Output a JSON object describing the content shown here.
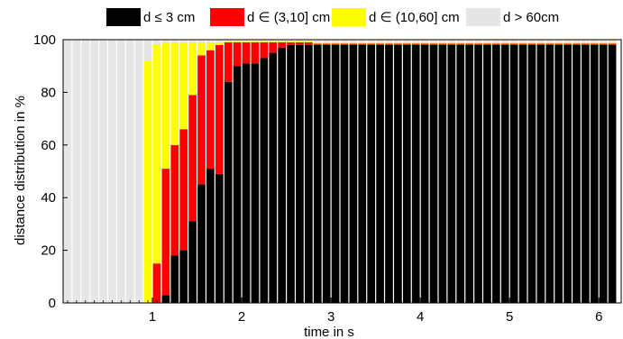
{
  "chart_data": {
    "type": "bar",
    "stacked": true,
    "xlabel": "time in s",
    "ylabel": "distance distribution in %",
    "xlim": [
      0.0,
      6.25
    ],
    "ylim": [
      0,
      100
    ],
    "xticks": [
      1,
      2,
      3,
      4,
      5,
      6
    ],
    "yticks": [
      0,
      20,
      40,
      60,
      80,
      100
    ],
    "bar_width": 0.1,
    "grid": false,
    "legend_position": "top",
    "colors": {
      "le3": "#000000",
      "b3_10": "#ff0000",
      "b10_60": "#ffff00",
      "gt60": "#e6e6e6"
    },
    "series": [
      {
        "name": "d ≤ 3 cm",
        "key": "le3"
      },
      {
        "name": "d ∈  (3,10] cm",
        "key": "b3_10"
      },
      {
        "name": "d ∈  (10,60] cm",
        "key": "b10_60"
      },
      {
        "name": "d > 60cm",
        "key": "gt60"
      }
    ],
    "x": [
      0.05,
      0.15,
      0.25,
      0.35,
      0.45,
      0.55,
      0.65,
      0.75,
      0.85,
      0.95,
      1.05,
      1.15,
      1.25,
      1.35,
      1.45,
      1.55,
      1.65,
      1.75,
      1.85,
      1.95,
      2.05,
      2.15,
      2.25,
      2.35,
      2.45,
      2.55,
      2.65,
      2.75,
      2.85,
      2.95,
      3.05,
      3.15,
      3.25,
      3.35,
      3.45,
      3.55,
      3.65,
      3.75,
      3.85,
      3.95,
      4.05,
      4.15,
      4.25,
      4.35,
      4.45,
      4.55,
      4.65,
      4.75,
      4.85,
      4.95,
      5.05,
      5.15,
      5.25,
      5.35,
      5.45,
      5.55,
      5.65,
      5.75,
      5.85,
      5.95,
      6.05,
      6.15
    ],
    "values": {
      "le3": [
        0,
        0,
        0,
        0,
        0,
        0,
        0,
        0,
        0,
        0,
        0,
        3,
        18,
        20,
        31,
        45,
        51,
        49,
        84,
        90,
        91,
        91,
        93,
        95,
        97,
        98,
        98,
        98,
        98,
        98,
        98,
        98,
        98,
        98,
        98,
        98,
        98,
        98,
        98,
        98,
        98,
        98,
        98,
        98,
        98,
        98,
        98,
        98,
        98,
        98,
        98,
        98,
        98,
        98,
        98,
        98,
        98,
        98,
        98,
        98,
        98,
        98
      ],
      "b3_10": [
        0,
        0,
        0,
        0,
        0,
        0,
        0,
        0,
        0,
        0,
        15,
        48,
        42,
        46,
        48,
        49,
        45,
        49,
        15,
        9,
        8,
        8,
        6,
        4,
        2,
        1,
        1,
        1,
        0.5,
        0.5,
        0.5,
        0.5,
        0.5,
        0.5,
        0.5,
        0.5,
        0.5,
        0.5,
        0.5,
        0.5,
        0.5,
        0.5,
        0.5,
        0.5,
        0.5,
        0.5,
        0.5,
        0.5,
        0.5,
        0.5,
        0.5,
        0.5,
        0.5,
        0.5,
        0.5,
        0.5,
        0.5,
        0.5,
        0.5,
        0.5,
        0.5,
        0.5
      ],
      "b10_60": [
        0,
        0,
        0,
        0,
        0,
        0,
        0,
        0,
        0,
        92,
        83,
        48,
        39,
        33,
        20,
        5,
        3,
        1,
        0.5,
        0.5,
        0.5,
        0.5,
        0.5,
        0.5,
        0.5,
        0.5,
        0.5,
        0.5,
        0.5,
        0.5,
        0.5,
        0.5,
        0.5,
        0.5,
        0.5,
        0.5,
        0.5,
        0.5,
        0.5,
        0.5,
        0.5,
        0.5,
        0.5,
        0.5,
        0.5,
        0.5,
        0.5,
        0.5,
        0.5,
        0.5,
        0.5,
        0.5,
        0.5,
        0.5,
        0.5,
        0.5,
        0.5,
        0.5,
        0.5,
        0.5,
        0.5,
        0.5
      ],
      "gt60": [
        100,
        100,
        100,
        100,
        100,
        100,
        100,
        100,
        100,
        8,
        2,
        1,
        1,
        1,
        1,
        1,
        1,
        1,
        0.5,
        0.5,
        0.5,
        0.5,
        0.5,
        0.5,
        0.5,
        0.5,
        0.5,
        0.5,
        1,
        1,
        1,
        1,
        1,
        1,
        1,
        1,
        1,
        1,
        1,
        1,
        1,
        1,
        1,
        1,
        1,
        1,
        1,
        1,
        1,
        1,
        1,
        1,
        1,
        1,
        1,
        1,
        1,
        1,
        1,
        1,
        1,
        1
      ]
    }
  }
}
